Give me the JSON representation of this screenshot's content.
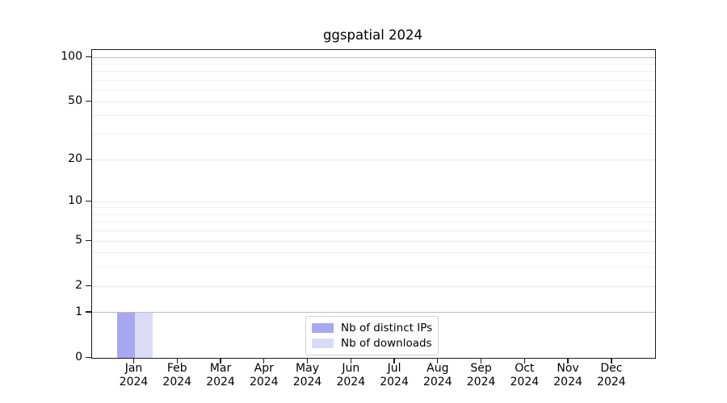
{
  "colors": {
    "spine": "#1a1a1a",
    "grid_minor": "#efefef",
    "grid_major": "#e8e8e8",
    "grid_emphasized": "#bdbdbd",
    "legend_border": "#d2d2d2",
    "background": "#ffffff"
  },
  "chart_data": {
    "type": "bar",
    "title": "ggspatial 2024",
    "categories": [
      "Jan",
      "Feb",
      "Mar",
      "Apr",
      "May",
      "Jun",
      "Jul",
      "Aug",
      "Sep",
      "Oct",
      "Nov",
      "Dec"
    ],
    "x_year_label": "2024",
    "series": [
      {
        "name": "Nb of distinct IPs",
        "color": "#a8a8f0",
        "values": [
          1,
          0,
          0,
          0,
          0,
          0,
          0,
          0,
          0,
          0,
          0,
          0
        ]
      },
      {
        "name": "Nb of downloads",
        "color": "#dbdbf8",
        "values": [
          1,
          0,
          0,
          0,
          0,
          0,
          0,
          0,
          0,
          0,
          0,
          0
        ]
      }
    ],
    "yscale": "log1p",
    "ylim": [
      0,
      112
    ],
    "yticks": [
      0,
      1,
      2,
      5,
      10,
      20,
      50,
      100
    ],
    "grid": {
      "orientation": "horizontal",
      "major_values": [
        2,
        5,
        10,
        20,
        50
      ],
      "minor_values": [
        3,
        4,
        6,
        7,
        8,
        9,
        30,
        40,
        60,
        70,
        80,
        90
      ],
      "emphasized_values": [
        1,
        100
      ]
    },
    "legend_position": "bottom-center"
  }
}
